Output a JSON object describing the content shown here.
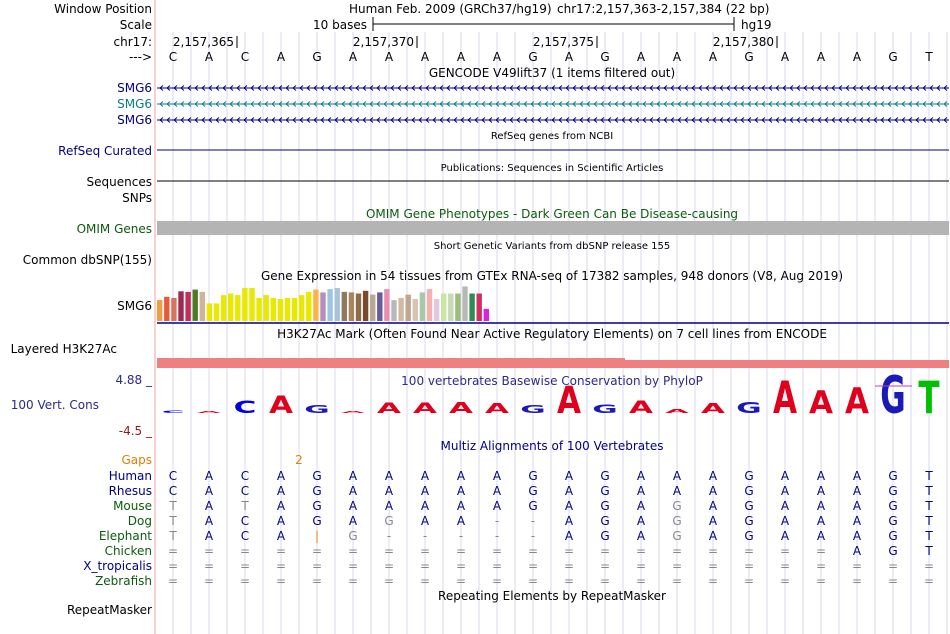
{
  "header": {
    "window_position_label": "Window Position",
    "assembly_text": "Human Feb. 2009 (GRCh37/hg19)",
    "position_text": "chr17:2,157,363-2,157,384 (22 bp)",
    "scale_label": "Scale",
    "scale_value": "10 bases",
    "scale_db": "hg19",
    "chrom_label": "chr17:",
    "arrow_label": "--->",
    "coords": [
      "2,157,365",
      "2,157,370",
      "2,157,375",
      "2,157,380"
    ]
  },
  "sequence": [
    "C",
    "A",
    "C",
    "A",
    "G",
    "A",
    "A",
    "A",
    "A",
    "A",
    "G",
    "A",
    "G",
    "A",
    "A",
    "A",
    "G",
    "A",
    "A",
    "A",
    "G",
    "T"
  ],
  "gencode": {
    "title": "GENCODE V49lift37 (1 items filtered out)",
    "rows": [
      {
        "label": "SMG6",
        "color": "#000080"
      },
      {
        "label": "SMG6",
        "color": "#0a7a8c"
      },
      {
        "label": "SMG6",
        "color": "#000080"
      }
    ]
  },
  "refseq": {
    "title": "RefSeq genes from NCBI",
    "label": "RefSeq Curated"
  },
  "publications": {
    "title": "Publications: Sequences in Scientific Articles",
    "label1": "Sequences",
    "label2": "SNPs"
  },
  "omim": {
    "title": "OMIM Gene Phenotypes - Dark Green Can Be Disease-causing",
    "label": "OMIM Genes",
    "color": "#0d5a0d"
  },
  "dbsnp": {
    "title": "Short Genetic Variants from dbSNP release 155",
    "label": "Common dbSNP(155)"
  },
  "gtex": {
    "title": "Gene Expression in 54 tissues from GTEx RNA-seq of 17382 samples, 948 donors (V8, Aug 2019)",
    "label": "SMG6",
    "bars": [
      {
        "v": 0.38,
        "c": "#f29d42"
      },
      {
        "v": 0.44,
        "c": "#e8583c"
      },
      {
        "v": 0.42,
        "c": "#d67460"
      },
      {
        "v": 0.54,
        "c": "#992a52"
      },
      {
        "v": 0.53,
        "c": "#c42f55"
      },
      {
        "v": 0.57,
        "c": "#4a7a2a"
      },
      {
        "v": 0.53,
        "c": "#cfb49b"
      },
      {
        "v": 0.32,
        "c": "#e8e800"
      },
      {
        "v": 0.32,
        "c": "#e8e800"
      },
      {
        "v": 0.47,
        "c": "#e8e800"
      },
      {
        "v": 0.5,
        "c": "#e8e800"
      },
      {
        "v": 0.47,
        "c": "#e8e800"
      },
      {
        "v": 0.6,
        "c": "#e8e800"
      },
      {
        "v": 0.6,
        "c": "#e8e800"
      },
      {
        "v": 0.42,
        "c": "#e8e800"
      },
      {
        "v": 0.47,
        "c": "#e8e800"
      },
      {
        "v": 0.42,
        "c": "#e8e800"
      },
      {
        "v": 0.4,
        "c": "#e8e800"
      },
      {
        "v": 0.42,
        "c": "#e8e800"
      },
      {
        "v": 0.42,
        "c": "#e8e800"
      },
      {
        "v": 0.47,
        "c": "#e8e800"
      },
      {
        "v": 0.53,
        "c": "#e8e800"
      },
      {
        "v": 0.57,
        "c": "#ffb24a"
      },
      {
        "v": 0.52,
        "c": "#b28fbf"
      },
      {
        "v": 0.58,
        "c": "#9dc4e5"
      },
      {
        "v": 0.6,
        "c": "#a8c3d6"
      },
      {
        "v": 0.53,
        "c": "#8f7a5e"
      },
      {
        "v": 0.52,
        "c": "#a6855e"
      },
      {
        "v": 0.5,
        "c": "#8b6b48"
      },
      {
        "v": 0.55,
        "c": "#7a4a2e"
      },
      {
        "v": 0.48,
        "c": "#b8a892"
      },
      {
        "v": 0.52,
        "c": "#6b5a9a"
      },
      {
        "v": 0.58,
        "c": "#e88fb0"
      },
      {
        "v": 0.38,
        "c": "#b8b8b8"
      },
      {
        "v": 0.42,
        "c": "#d4b8a0"
      },
      {
        "v": 0.48,
        "c": "#c0a68c"
      },
      {
        "v": 0.4,
        "c": "#d8c4b0"
      },
      {
        "v": 0.52,
        "c": "#a8c8a8"
      },
      {
        "v": 0.58,
        "c": "#f5b0b0"
      },
      {
        "v": 0.4,
        "c": "#e0c8e0"
      },
      {
        "v": 0.5,
        "c": "#c8e8a0"
      },
      {
        "v": 0.5,
        "c": "#c8d8b8"
      },
      {
        "v": 0.5,
        "c": "#9abf7a"
      },
      {
        "v": 0.63,
        "c": "#b8b8b8"
      },
      {
        "v": 0.5,
        "c": "#2e8b57"
      },
      {
        "v": 0.5,
        "c": "#d03060"
      },
      {
        "v": 0.22,
        "c": "#e020e0"
      }
    ]
  },
  "h3k27ac": {
    "title": "H3K27Ac Mark (Often Found Near Active Regulatory Elements) on 7 cell lines from ENCODE",
    "label": "Layered H3K27Ac",
    "color": "#f08080"
  },
  "conservation": {
    "title": "100 vertebrates Basewise Conservation by PhyloP",
    "label": "100 Vert. Cons",
    "max": "4.88 _",
    "min": "-4.5 _",
    "max_value": 4.88,
    "scores": [
      0.2,
      0.12,
      0.9,
      1.3,
      0.55,
      0.12,
      0.75,
      0.75,
      0.8,
      0.7,
      0.55,
      2.0,
      0.6,
      0.9,
      0.3,
      0.7,
      0.8,
      2.4,
      1.7,
      1.9,
      2.8,
      2.4
    ],
    "base_colors": {
      "A": "#e0001c",
      "C": "#0000e0",
      "G": "#1a1ab8",
      "T": "#00c000"
    }
  },
  "multiz": {
    "title": "Multiz Alignments of 100 Vertebrates",
    "gaps_label": "Gaps",
    "gap_value": "2",
    "species": [
      {
        "name": "Human",
        "color": "#000080",
        "seq": [
          "C",
          "A",
          "C",
          "A",
          "G",
          "A",
          "A",
          "A",
          "A",
          "A",
          "G",
          "A",
          "G",
          "A",
          "A",
          "A",
          "G",
          "A",
          "A",
          "A",
          "G",
          "T"
        ]
      },
      {
        "name": "Rhesus",
        "color": "#000080",
        "seq": [
          "C",
          "A",
          "C",
          "A",
          "G",
          "A",
          "A",
          "A",
          "A",
          "A",
          "G",
          "A",
          "G",
          "A",
          "A",
          "A",
          "G",
          "A",
          "A",
          "A",
          "G",
          "T"
        ]
      },
      {
        "name": "Mouse",
        "color": "#0d5a0d",
        "seq": [
          "T",
          "A",
          "T",
          "A",
          "G",
          "A",
          "A",
          "A",
          "A",
          "A",
          "G",
          "A",
          "G",
          "A",
          "G",
          "A",
          "G",
          "A",
          "A",
          "A",
          "G",
          "T"
        ]
      },
      {
        "name": "Dog",
        "color": "#0d5a0d",
        "seq": [
          "T",
          "A",
          "C",
          "A",
          "G",
          "A",
          "G",
          "A",
          "A",
          "-",
          "-",
          "A",
          "G",
          "A",
          "G",
          "A",
          "G",
          "A",
          "A",
          "A",
          "G",
          "T"
        ]
      },
      {
        "name": "Elephant",
        "color": "#0d5a0d",
        "seq": [
          "T",
          "A",
          "C",
          "A",
          "|",
          "G",
          "-",
          "-",
          "-",
          "-",
          "-",
          "A",
          "G",
          "A",
          "G",
          "A",
          "G",
          "A",
          "A",
          "A",
          "G",
          "T"
        ]
      },
      {
        "name": "Chicken",
        "color": "#0d5a0d",
        "seq": [
          "=",
          "=",
          "=",
          "=",
          "=",
          "=",
          "=",
          "=",
          "=",
          "=",
          "=",
          "=",
          "=",
          "=",
          "=",
          "=",
          "=",
          "=",
          "=",
          "A",
          "G",
          "T"
        ]
      },
      {
        "name": "X_tropicalis",
        "color": "#000080",
        "seq": [
          "=",
          "=",
          "=",
          "=",
          "=",
          "=",
          "=",
          "=",
          "=",
          "=",
          "=",
          "=",
          "=",
          "=",
          "=",
          "=",
          "=",
          "=",
          "=",
          "=",
          "=",
          "="
        ]
      },
      {
        "name": "Zebrafish",
        "color": "#0d5a0d",
        "seq": [
          "=",
          "=",
          "=",
          "=",
          "=",
          "=",
          "=",
          "=",
          "=",
          "=",
          "=",
          "=",
          "=",
          "=",
          "=",
          "=",
          "=",
          "=",
          "=",
          "=",
          "=",
          "="
        ]
      }
    ]
  },
  "repeatmasker": {
    "title": "Repeating Elements by RepeatMasker",
    "label": "RepeatMasker"
  }
}
